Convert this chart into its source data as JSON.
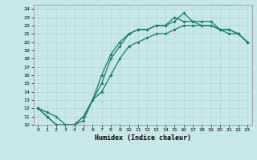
{
  "xlabel": "Humidex (Indice chaleur)",
  "bg_color": "#c8e8e8",
  "line_color": "#1a7a6a",
  "grid_color": "#b0d4d4",
  "xlim": [
    -0.5,
    23.5
  ],
  "ylim": [
    10,
    24.5
  ],
  "xticks": [
    0,
    1,
    2,
    3,
    4,
    5,
    6,
    7,
    8,
    9,
    10,
    11,
    12,
    13,
    14,
    15,
    16,
    17,
    18,
    19,
    20,
    21,
    22,
    23
  ],
  "yticks": [
    10,
    11,
    12,
    13,
    14,
    15,
    16,
    17,
    18,
    19,
    20,
    21,
    22,
    23,
    24
  ],
  "line1_x": [
    0,
    1,
    2,
    3,
    4,
    5,
    6,
    7,
    8,
    9,
    10,
    11,
    12,
    13,
    14,
    15,
    16,
    17,
    18,
    19,
    20,
    21,
    22,
    23
  ],
  "line1_y": [
    12,
    11,
    10,
    10,
    10,
    11,
    13,
    16,
    18.5,
    20,
    21,
    21.5,
    21.5,
    22,
    22,
    22.5,
    23.5,
    22.5,
    22.5,
    22.5,
    21.5,
    21.5,
    21,
    20
  ],
  "line2_x": [
    0,
    1,
    2,
    3,
    4,
    5,
    6,
    7,
    8,
    9,
    10,
    11,
    12,
    13,
    14,
    15,
    16,
    17,
    18,
    19,
    20,
    21,
    22,
    23
  ],
  "line2_y": [
    12,
    11,
    10,
    9.5,
    10,
    11,
    13,
    15,
    18,
    19.5,
    21,
    21.5,
    21.5,
    22,
    22,
    23,
    22.5,
    22.5,
    22,
    22,
    21.5,
    21.5,
    21,
    20
  ],
  "line3_x": [
    0,
    1,
    2,
    3,
    4,
    5,
    6,
    7,
    8,
    9,
    10,
    11,
    12,
    13,
    14,
    15,
    16,
    17,
    18,
    19,
    20,
    21,
    22,
    23
  ],
  "line3_y": [
    12,
    11.5,
    11,
    10,
    10,
    10.5,
    13,
    14,
    16,
    18,
    19.5,
    20,
    20.5,
    21,
    21,
    21.5,
    22,
    22,
    22,
    22,
    21.5,
    21,
    21,
    20
  ],
  "xlabel_fontsize": 6,
  "tick_fontsize": 4.5
}
